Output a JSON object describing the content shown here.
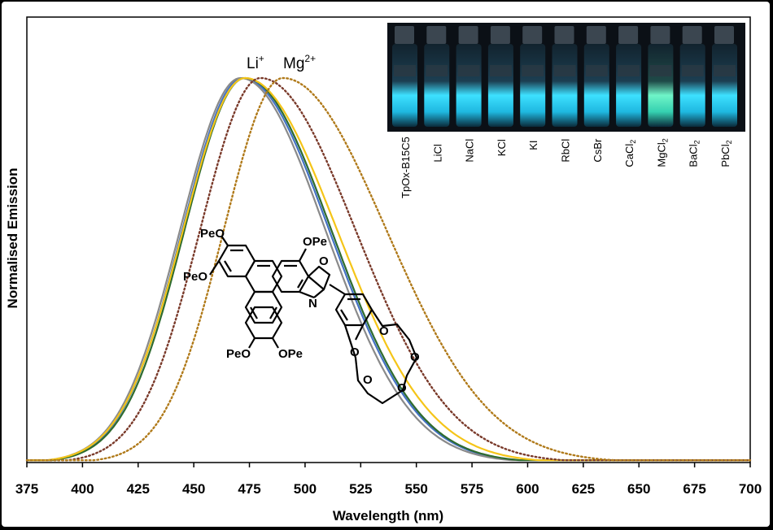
{
  "chart_data": {
    "type": "line",
    "title": "",
    "xlabel": "Wavelength (nm)",
    "ylabel": "Normalised Emission",
    "xlim": [
      375,
      700
    ],
    "ylim": [
      0,
      1
    ],
    "x_ticks": [
      375,
      400,
      425,
      450,
      475,
      500,
      525,
      550,
      575,
      600,
      625,
      650,
      675,
      700
    ],
    "grid": false,
    "series": [
      {
        "color": "#4472c4",
        "style": "solid",
        "peak": 472,
        "width_left": 42,
        "width_right": 60
      },
      {
        "color": "#8a8a8a",
        "style": "solid",
        "peak": 471,
        "width_left": 42,
        "width_right": 59
      },
      {
        "color": "#2e6b2e",
        "style": "solid",
        "peak": 473,
        "width_left": 42,
        "width_right": 60
      },
      {
        "color": "#f5c518",
        "style": "solid",
        "peak": 473,
        "width_left": 43,
        "width_right": 64
      },
      {
        "color": "#7a3a2a",
        "style": "dotted",
        "peak": 480,
        "width_left": 42,
        "width_right": 66
      },
      {
        "color": "#b07a1a",
        "style": "dotted",
        "peak": 490,
        "width_left": 41,
        "width_right": 72
      }
    ],
    "annotations": [
      {
        "text_main": "Li",
        "text_sup": "+",
        "x": 474
      },
      {
        "text_main": "Mg",
        "text_sup": "2+",
        "x": 497
      }
    ]
  },
  "inset": {
    "vial_labels": [
      {
        "main": "TpOx-B15C5",
        "sub": ""
      },
      {
        "main": "LiCl",
        "sub": ""
      },
      {
        "main": "NaCl",
        "sub": ""
      },
      {
        "main": "KCl",
        "sub": ""
      },
      {
        "main": "KI",
        "sub": ""
      },
      {
        "main": "RbCl",
        "sub": ""
      },
      {
        "main": "CsBr",
        "sub": ""
      },
      {
        "main": "CaCl",
        "sub": "2"
      },
      {
        "main": "MgCl",
        "sub": "2"
      },
      {
        "main": "BaCl",
        "sub": "2"
      },
      {
        "main": "PbCl",
        "sub": "2"
      }
    ]
  },
  "molecule": {
    "labels": [
      "PeO",
      "PeO",
      "OPe",
      "PeO",
      "OPe",
      "O",
      "N",
      "O",
      "O",
      "O",
      "O",
      "O"
    ]
  }
}
